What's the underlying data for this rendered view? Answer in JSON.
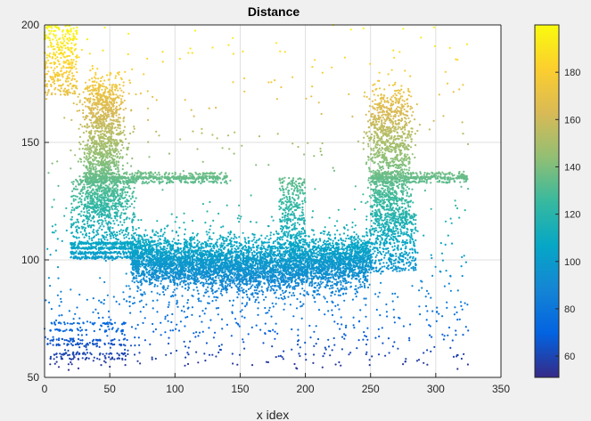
{
  "chart_data": {
    "type": "scatter",
    "title": "Distance",
    "xlabel": "x idex",
    "ylabel": "",
    "xlim": [
      0,
      350
    ],
    "ylim": [
      50,
      200
    ],
    "x_ticks": [
      "0",
      "50",
      "100",
      "150",
      "200",
      "250",
      "300",
      "350"
    ],
    "y_ticks": [
      "50",
      "100",
      "150",
      "200"
    ],
    "grid": true,
    "color_by": "y",
    "colorbar": {
      "limits": [
        51,
        200
      ],
      "ticks": [
        "60",
        "80",
        "100",
        "120",
        "140",
        "160",
        "180"
      ],
      "colormap": "parula",
      "colors": [
        "#352a87",
        "#0363e1",
        "#1485d4",
        "#06a7c6",
        "#38b99e",
        "#92bf73",
        "#d9ba56",
        "#fcce2e",
        "#f9fb0e"
      ]
    },
    "clusters": [
      {
        "x": [
          67,
          250
        ],
        "y": [
          88,
          115
        ],
        "n": 5200,
        "description": "dense central band"
      },
      {
        "x": [
          35,
          60
        ],
        "y": [
          120,
          175
        ],
        "n": 1500
      },
      {
        "x": [
          250,
          280
        ],
        "y": [
          115,
          170
        ],
        "n": 1300
      },
      {
        "x": [
          180,
          200
        ],
        "y": [
          100,
          135
        ],
        "n": 400
      },
      {
        "x": [
          0,
          25
        ],
        "y": [
          170,
          200
        ],
        "n": 350
      },
      {
        "x": [
          30,
          140
        ],
        "y": [
          133,
          137
        ],
        "n": 600
      },
      {
        "x": [
          250,
          325
        ],
        "y": [
          133,
          137
        ],
        "n": 400
      },
      {
        "x": [
          20,
          60
        ],
        "y": [
          101,
          107
        ],
        "n": 500
      }
    ]
  }
}
